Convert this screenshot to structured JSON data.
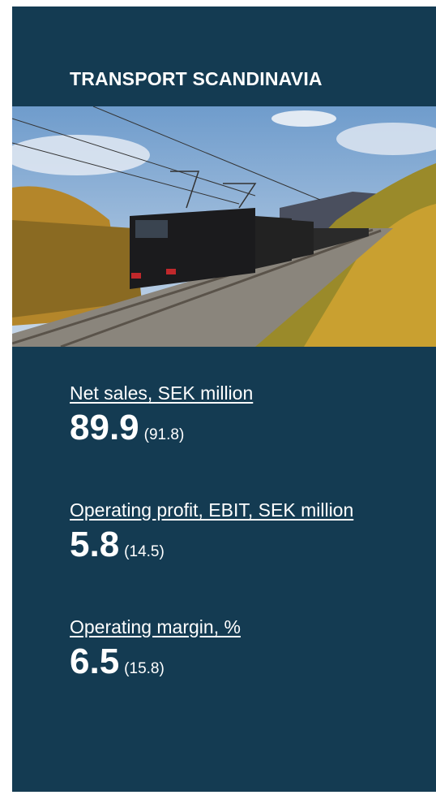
{
  "header": {
    "title": "TRANSPORT SCANDINAVIA"
  },
  "metrics": [
    {
      "label": "Net sales, SEK million",
      "value": 89.9,
      "previous": "(91.8)"
    },
    {
      "label": "Operating profit, EBIT, SEK million",
      "value": 5.8,
      "previous": "(14.5)"
    },
    {
      "label": "Operating margin, %",
      "value": 6.5,
      "previous": "(15.8)"
    }
  ]
}
